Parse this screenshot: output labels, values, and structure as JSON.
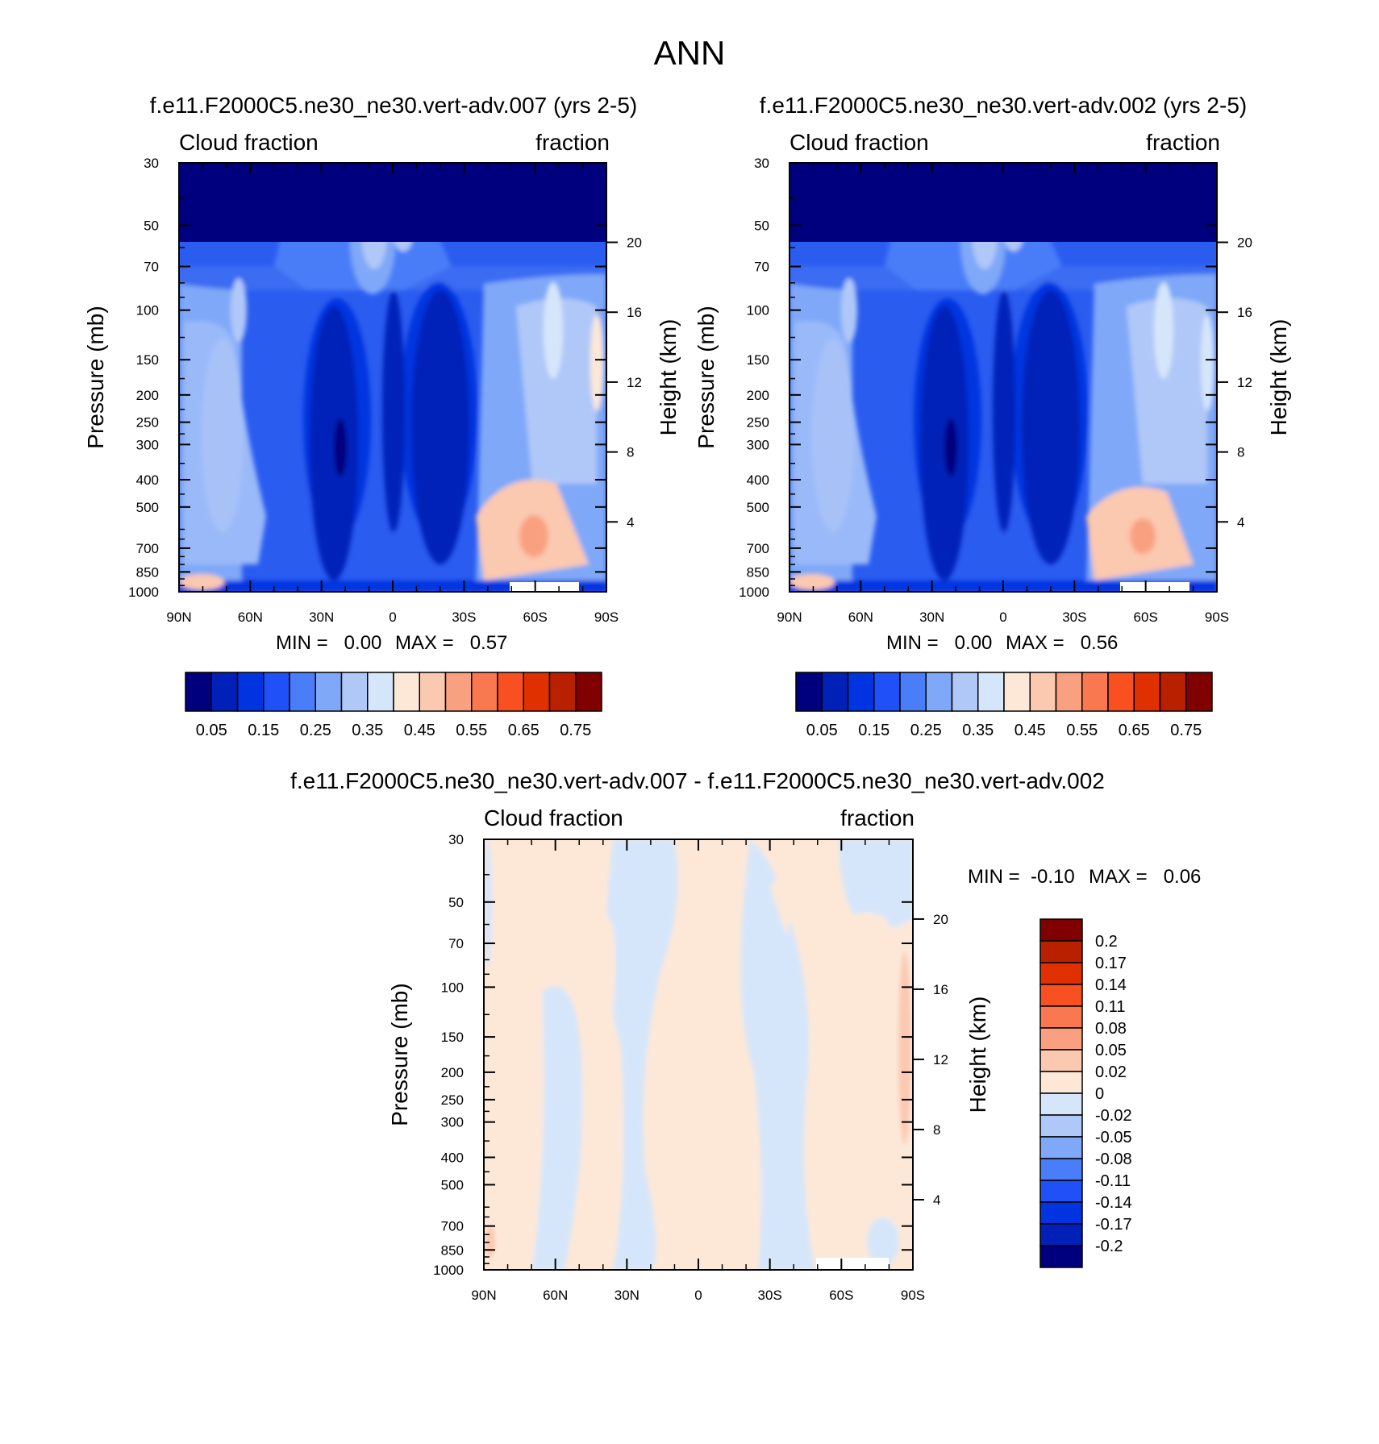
{
  "page_title": "ANN",
  "chart_data": [
    {
      "type": "heatmap",
      "id": "panel-1",
      "title": "f.e11.F2000C5.ne30_ne30.vert-adv.007 (yrs 2-5)",
      "left_label": "Cloud fraction",
      "right_label": "fraction",
      "xlabel": "",
      "ylabel": "Pressure (mb)",
      "ylabel_right": "Height (km)",
      "x_ticks": [
        "90N",
        "60N",
        "30N",
        "0",
        "30S",
        "60S",
        "90S"
      ],
      "x_values": [
        90,
        60,
        30,
        0,
        -30,
        -60,
        -90
      ],
      "xlim": [
        90,
        -90
      ],
      "y_ticks": [
        "30",
        "50",
        "70",
        "100",
        "150",
        "200",
        "250",
        "300",
        "400",
        "500",
        "700",
        "850",
        "1000"
      ],
      "y_values": [
        30,
        50,
        70,
        100,
        150,
        200,
        250,
        300,
        400,
        500,
        700,
        850,
        1000
      ],
      "ylim": [
        30,
        1000
      ],
      "height_ticks": [
        "20",
        "16",
        "12",
        "8",
        "4"
      ],
      "height_values": [
        20,
        16,
        12,
        8,
        4
      ],
      "min_label": "MIN =   0.00",
      "max_label": "MAX =   0.57",
      "colorbar_labels": [
        "0.05",
        "0.15",
        "0.25",
        "0.35",
        "0.45",
        "0.55",
        "0.65",
        "0.75"
      ],
      "colorbar_colors": [
        "#00007f",
        "#0020b8",
        "#0034e0",
        "#2050f8",
        "#4a7df8",
        "#7fa8f8",
        "#b0c8f8",
        "#d6e6fa",
        "#fde8d8",
        "#fbc8b0",
        "#f9a080",
        "#f97850",
        "#f85020",
        "#e03000",
        "#b82000",
        "#800000"
      ]
    },
    {
      "type": "heatmap",
      "id": "panel-2",
      "title": "f.e11.F2000C5.ne30_ne30.vert-adv.002 (yrs 2-5)",
      "left_label": "Cloud fraction",
      "right_label": "fraction",
      "xlabel": "",
      "ylabel": "Pressure (mb)",
      "ylabel_right": "Height (km)",
      "x_ticks": [
        "90N",
        "60N",
        "30N",
        "0",
        "30S",
        "60S",
        "90S"
      ],
      "x_values": [
        90,
        60,
        30,
        0,
        -30,
        -60,
        -90
      ],
      "xlim": [
        90,
        -90
      ],
      "y_ticks": [
        "30",
        "50",
        "70",
        "100",
        "150",
        "200",
        "250",
        "300",
        "400",
        "500",
        "700",
        "850",
        "1000"
      ],
      "y_values": [
        30,
        50,
        70,
        100,
        150,
        200,
        250,
        300,
        400,
        500,
        700,
        850,
        1000
      ],
      "ylim": [
        30,
        1000
      ],
      "height_ticks": [
        "20",
        "16",
        "12",
        "8",
        "4"
      ],
      "height_values": [
        20,
        16,
        12,
        8,
        4
      ],
      "min_label": "MIN =   0.00",
      "max_label": "MAX =   0.56",
      "colorbar_labels": [
        "0.05",
        "0.15",
        "0.25",
        "0.35",
        "0.45",
        "0.55",
        "0.65",
        "0.75"
      ],
      "colorbar_colors": [
        "#00007f",
        "#0020b8",
        "#0034e0",
        "#2050f8",
        "#4a7df8",
        "#7fa8f8",
        "#b0c8f8",
        "#d6e6fa",
        "#fde8d8",
        "#fbc8b0",
        "#f9a080",
        "#f97850",
        "#f85020",
        "#e03000",
        "#b82000",
        "#800000"
      ]
    },
    {
      "type": "heatmap",
      "id": "panel-diff",
      "title": "f.e11.F2000C5.ne30_ne30.vert-adv.007 - f.e11.F2000C5.ne30_ne30.vert-adv.002",
      "left_label": "Cloud fraction",
      "right_label": "fraction",
      "xlabel": "",
      "ylabel": "Pressure (mb)",
      "ylabel_right": "Height (km)",
      "x_ticks": [
        "90N",
        "60N",
        "30N",
        "0",
        "30S",
        "60S",
        "90S"
      ],
      "x_values": [
        90,
        60,
        30,
        0,
        -30,
        -60,
        -90
      ],
      "xlim": [
        90,
        -90
      ],
      "y_ticks": [
        "30",
        "50",
        "70",
        "100",
        "150",
        "200",
        "250",
        "300",
        "400",
        "500",
        "700",
        "850",
        "1000"
      ],
      "y_values": [
        30,
        50,
        70,
        100,
        150,
        200,
        250,
        300,
        400,
        500,
        700,
        850,
        1000
      ],
      "ylim": [
        30,
        1000
      ],
      "height_ticks": [
        "20",
        "16",
        "12",
        "8",
        "4"
      ],
      "height_values": [
        20,
        16,
        12,
        8,
        4
      ],
      "min_label": "MIN =  -0.10",
      "max_label": "MAX =   0.06",
      "colorbar_labels": [
        "0.2",
        "0.17",
        "0.14",
        "0.11",
        "0.08",
        "0.05",
        "0.02",
        "0",
        "-0.02",
        "-0.05",
        "-0.08",
        "-0.11",
        "-0.14",
        "-0.17",
        "-0.2"
      ],
      "colorbar_colors": [
        "#800000",
        "#b82000",
        "#e03000",
        "#f85020",
        "#f97850",
        "#f9a080",
        "#fbc8b0",
        "#fde8d8",
        "#d6e6fa",
        "#b0c8f8",
        "#7fa8f8",
        "#4a7df8",
        "#2050f8",
        "#0034e0",
        "#0020b8",
        "#00007f"
      ]
    }
  ]
}
